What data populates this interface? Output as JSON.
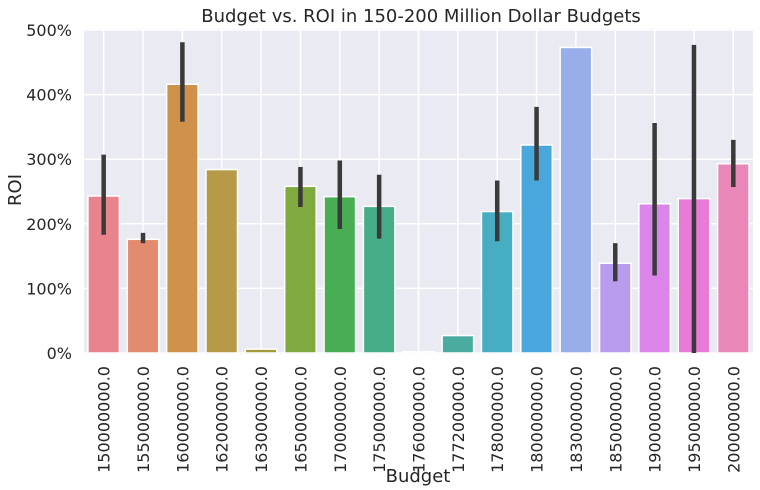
{
  "chart_data": {
    "type": "bar",
    "title": "Budget vs. ROI in 150-200 Million Dollar Budgets",
    "xlabel": "Budget",
    "ylabel": "ROI",
    "ylim": [
      0,
      500
    ],
    "y_ticks": [
      0,
      100,
      200,
      300,
      400,
      500
    ],
    "y_tick_labels": [
      "0%",
      "100%",
      "200%",
      "300%",
      "400%",
      "500%"
    ],
    "grid": true,
    "background": "#eaeaf2",
    "error_bar_color": "#3a3a3a",
    "categories": [
      "150000000.0",
      "155000000.0",
      "160000000.0",
      "162000000.0",
      "163000000.0",
      "165000000.0",
      "170000000.0",
      "175000000.0",
      "176000000.0",
      "177200000.0",
      "178000000.0",
      "180000000.0",
      "183000000.0",
      "185000000.0",
      "190000000.0",
      "195000000.0",
      "200000000.0"
    ],
    "values": [
      243,
      176,
      416,
      284,
      6,
      258,
      242,
      227,
      2,
      27,
      219,
      322,
      473,
      139,
      231,
      239,
      293
    ],
    "ci_low": [
      183,
      170,
      358,
      null,
      null,
      226,
      192,
      177,
      null,
      null,
      173,
      267,
      null,
      111,
      120,
      0,
      257
    ],
    "ci_high": [
      307,
      186,
      481,
      null,
      null,
      288,
      298,
      276,
      null,
      null,
      267,
      381,
      null,
      170,
      356,
      477,
      330
    ],
    "colors": [
      "#e8848e",
      "#e38b6f",
      "#d0914a",
      "#b79a47",
      "#a19b3e",
      "#80a93f",
      "#48ad53",
      "#47ad86",
      "#48aa9c",
      "#4bab9f",
      "#47aec2",
      "#4aa7db",
      "#98aeea",
      "#ba9cef",
      "#db84ea",
      "#ea7ad7",
      "#ea87b9"
    ]
  }
}
